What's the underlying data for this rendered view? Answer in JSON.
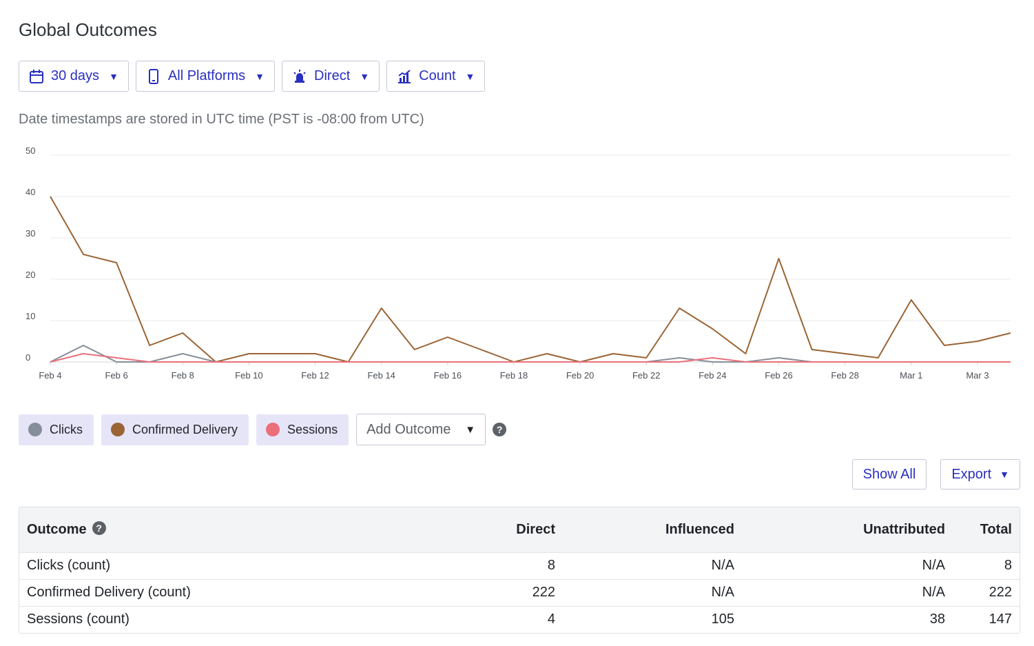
{
  "page": {
    "title": "Global Outcomes"
  },
  "filters": [
    {
      "icon": "calendar-icon",
      "label": "30 days"
    },
    {
      "icon": "mobile-device-icon",
      "label": "All Platforms"
    },
    {
      "icon": "alarm-light-icon",
      "label": "Direct"
    },
    {
      "icon": "bar-chart-icon",
      "label": "Count"
    }
  ],
  "utc_note": "Date timestamps are stored in UTC time (PST is -08:00 from UTC)",
  "chart_data": {
    "type": "line",
    "x": [
      "Feb 4",
      "Feb 5",
      "Feb 6",
      "Feb 7",
      "Feb 8",
      "Feb 9",
      "Feb 10",
      "Feb 11",
      "Feb 12",
      "Feb 13",
      "Feb 14",
      "Feb 15",
      "Feb 16",
      "Feb 17",
      "Feb 18",
      "Feb 19",
      "Feb 20",
      "Feb 21",
      "Feb 22",
      "Feb 23",
      "Feb 24",
      "Feb 25",
      "Feb 26",
      "Feb 27",
      "Feb 28",
      "Feb 29",
      "Mar 1",
      "Mar 2",
      "Mar 3",
      "Mar 4"
    ],
    "tick_labels": [
      "Feb 4",
      "Feb 6",
      "Feb 8",
      "Feb 10",
      "Feb 12",
      "Feb 14",
      "Feb 16",
      "Feb 18",
      "Feb 20",
      "Feb 22",
      "Feb 24",
      "Feb 26",
      "Feb 28",
      "Mar 1",
      "Mar 3"
    ],
    "y_ticks": [
      0,
      10,
      20,
      30,
      40,
      50
    ],
    "ylim": [
      0,
      50
    ],
    "grid": true,
    "series": [
      {
        "name": "Confirmed Delivery",
        "color": "#9a6434",
        "values": [
          40,
          26,
          24,
          4,
          7,
          0,
          2,
          2,
          2,
          0,
          13,
          3,
          6,
          3,
          0,
          2,
          0,
          2,
          1,
          13,
          8,
          2,
          25,
          3,
          2,
          1,
          15,
          4,
          5,
          7
        ]
      },
      {
        "name": "Clicks",
        "color": "#868e99",
        "values": [
          0,
          4,
          0,
          0,
          2,
          0,
          0,
          0,
          0,
          0,
          0,
          0,
          0,
          0,
          0,
          0,
          0,
          0,
          0,
          1,
          0,
          0,
          1,
          0,
          0,
          0,
          0,
          0,
          0,
          0
        ]
      },
      {
        "name": "Sessions",
        "color": "#ea6f7a",
        "values": [
          0,
          2,
          1,
          0,
          0,
          0,
          0,
          0,
          0,
          0,
          0,
          0,
          0,
          0,
          0,
          0,
          0,
          0,
          0,
          0,
          1,
          0,
          0,
          0,
          0,
          0,
          0,
          0,
          0,
          0
        ]
      }
    ]
  },
  "legend": {
    "chips": [
      {
        "label": "Clicks",
        "color": "#868e99"
      },
      {
        "label": "Confirmed Delivery",
        "color": "#9a6434"
      },
      {
        "label": "Sessions",
        "color": "#ea6f7a"
      }
    ],
    "add_outcome": "Add Outcome"
  },
  "actions": {
    "show_all": "Show All",
    "export": "Export"
  },
  "table": {
    "headers": [
      "Outcome",
      "Direct",
      "Influenced",
      "Unattributed",
      "Total"
    ],
    "rows": [
      [
        "Clicks (count)",
        "8",
        "N/A",
        "N/A",
        "8"
      ],
      [
        "Confirmed Delivery (count)",
        "222",
        "N/A",
        "N/A",
        "222"
      ],
      [
        "Sessions (count)",
        "4",
        "105",
        "38",
        "147"
      ]
    ]
  }
}
